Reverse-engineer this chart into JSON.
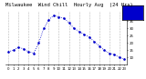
{
  "title": "Milwaukee  Wind Chill  Hourly Avg  (24 Hrs)",
  "x_hours": [
    0,
    1,
    2,
    3,
    4,
    5,
    6,
    7,
    8,
    9,
    10,
    11,
    12,
    13,
    14,
    15,
    16,
    17,
    18,
    19,
    20,
    21,
    22,
    23
  ],
  "y_values": [
    14,
    15,
    17,
    16,
    14,
    13,
    20,
    30,
    36,
    39,
    38,
    37,
    34,
    30,
    28,
    26,
    24,
    21,
    18,
    15,
    13,
    12,
    10,
    9
  ],
  "ylim": [
    5,
    42
  ],
  "xlim": [
    -0.5,
    23.5
  ],
  "yticks": [
    10,
    15,
    20,
    25,
    30,
    35,
    40
  ],
  "xtick_positions": [
    0,
    1,
    2,
    3,
    4,
    5,
    6,
    7,
    8,
    9,
    10,
    11,
    12,
    13,
    14,
    15,
    16,
    17,
    18,
    19,
    20,
    21,
    22,
    23
  ],
  "xtick_labels": [
    "0",
    "1",
    "2",
    "3",
    "4",
    "5",
    "6",
    "7",
    "8",
    "9",
    "10",
    "11",
    "12",
    "13",
    "14",
    "15",
    "16",
    "17",
    "18",
    "19",
    "20",
    "21",
    "22",
    "23"
  ],
  "bg_color": "#ffffff",
  "plot_bg": "#ffffff",
  "line_color": "#0000cc",
  "grid_color": "#888888",
  "legend_fill": "#0000cc",
  "title_fontsize": 4.0
}
